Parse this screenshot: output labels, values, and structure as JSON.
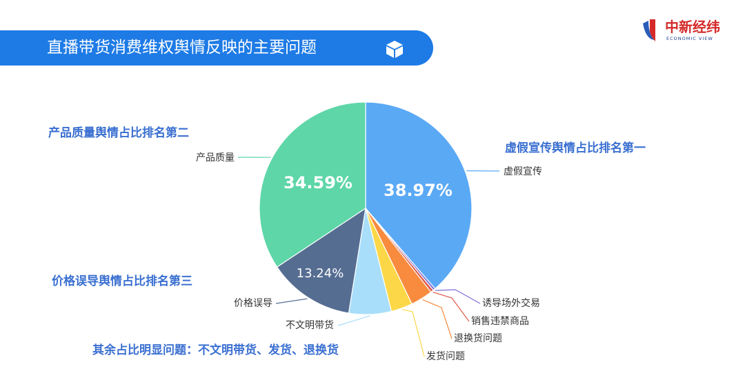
{
  "header": {
    "title": "直播带货消费维权舆情反映的主要问题",
    "icon": "cube-icon",
    "accent_color": "#1e7be6"
  },
  "logo": {
    "name": "中新经纬",
    "subtitle": "ECONOMIC VIEW"
  },
  "chart_data": {
    "type": "pie",
    "start_angle_deg": 0,
    "direction": "clockwise",
    "slices": [
      {
        "label": "虚假宣传",
        "value": 38.97,
        "value_label": "38.97%",
        "color": "#5aa9f5"
      },
      {
        "label": "诱导场外交易",
        "value": 0.35,
        "value_label": "",
        "color": "#7b6fd6"
      },
      {
        "label": "销售违禁商品",
        "value": 0.45,
        "value_label": "",
        "color": "#e05a4a"
      },
      {
        "label": "退换货问题",
        "value": 3.4,
        "value_label": "",
        "color": "#f98b3e"
      },
      {
        "label": "发货问题",
        "value": 3.3,
        "value_label": "",
        "color": "#fcd848"
      },
      {
        "label": "不文明带货",
        "value": 6.5,
        "value_label": "",
        "color": "#a8defa"
      },
      {
        "label": "价格误导",
        "value": 13.24,
        "value_label": "13.24%",
        "color": "#566d92"
      },
      {
        "label": "产品质量",
        "value": 34.59,
        "value_label": "34.59%",
        "color": "#5ed6a8"
      }
    ]
  },
  "annotations": [
    {
      "text": "虚假宣传舆情占比排名第一"
    },
    {
      "text": "产品质量舆情占比排名第二"
    },
    {
      "text": "价格误导舆情占比排名第三"
    },
    {
      "text": "其余占比明显问题：不文明带货、发货、退换货"
    }
  ]
}
